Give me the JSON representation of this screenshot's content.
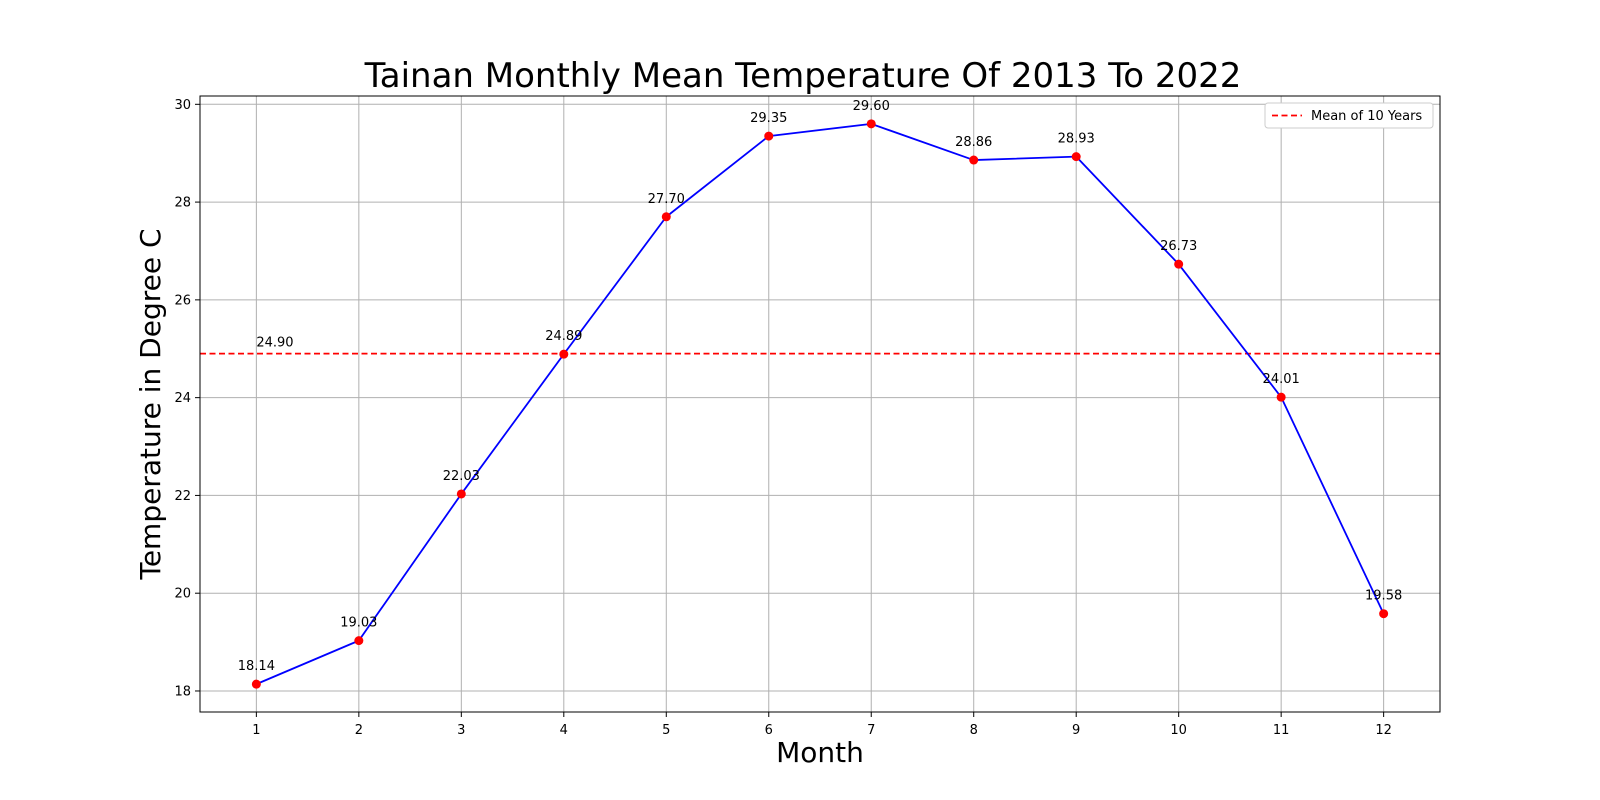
{
  "chart_data": {
    "type": "line",
    "title": "Tainan Monthly Mean Temperature Of 2013 To 2022",
    "xlabel": "Month",
    "ylabel": "Temperature in Degree C",
    "x": [
      1,
      2,
      3,
      4,
      5,
      6,
      7,
      8,
      9,
      10,
      11,
      12
    ],
    "x_tick_labels": [
      "1",
      "2",
      "3",
      "4",
      "5",
      "6",
      "7",
      "8",
      "9",
      "10",
      "11",
      "12"
    ],
    "y_ticks": [
      18,
      20,
      22,
      24,
      26,
      28,
      30
    ],
    "y_tick_labels": [
      "18",
      "20",
      "22",
      "24",
      "26",
      "28",
      "30"
    ],
    "xlim": [
      0.45,
      12.55
    ],
    "ylim": [
      17.57,
      30.17
    ],
    "grid": true,
    "series": [
      {
        "values": [
          18.14,
          19.03,
          22.03,
          24.89,
          27.7,
          29.35,
          29.6,
          28.86,
          28.93,
          26.73,
          24.01,
          19.58
        ],
        "labels": [
          "18.14",
          "19.03",
          "22.03",
          "24.89",
          "27.70",
          "29.35",
          "29.60",
          "28.86",
          "28.93",
          "26.73",
          "24.01",
          "19.58"
        ],
        "line_color": "#0000ff",
        "marker_color": "#ff0000"
      }
    ],
    "reference_line": {
      "name": "Mean of 10 Years",
      "value": 24.9,
      "label": "24.90",
      "color": "#ff0000",
      "style": "dashed"
    },
    "legend": {
      "position": "top-right",
      "entries": [
        "Mean of 10 Years"
      ]
    }
  }
}
